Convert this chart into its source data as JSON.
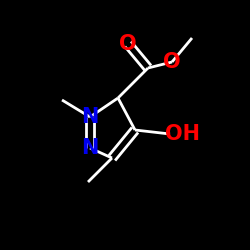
{
  "background_color": "#000000",
  "bond_color": "#ffffff",
  "atom_colors": {
    "O": "#ff0000",
    "N": "#0000ee",
    "C": "#ffffff"
  },
  "figsize": [
    2.5,
    2.5
  ],
  "dpi": 100,
  "lw": 2.0,
  "font_size_N": 15,
  "font_size_O": 15,
  "font_size_OH": 15
}
